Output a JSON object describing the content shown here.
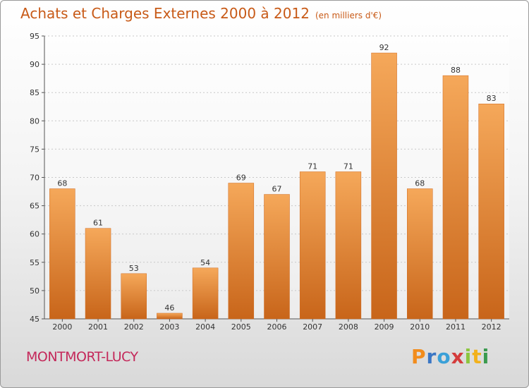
{
  "header": {
    "title": "Achats et Charges Externes 2000 à 2012",
    "unit": "(en milliers d'€)"
  },
  "footer": {
    "commune": "MONTMORT-LUCY",
    "logo_letters": [
      "P",
      "r",
      "o",
      "x",
      "i",
      "t",
      "i"
    ],
    "logo_colors": [
      "#f28c1c",
      "#3a76c4",
      "#3aa0d8",
      "#d43c3c",
      "#8cc63e",
      "#f2b11c",
      "#3a9a4e"
    ]
  },
  "colors": {
    "bar_light": "#f5a85a",
    "bar_dark": "#c8651a",
    "title": "#c85a17",
    "commune": "#c4285a"
  },
  "chart_data": {
    "type": "bar",
    "categories": [
      "2000",
      "2001",
      "2002",
      "2003",
      "2004",
      "2005",
      "2006",
      "2007",
      "2008",
      "2009",
      "2010",
      "2011",
      "2012"
    ],
    "values": [
      68,
      61,
      53,
      46,
      54,
      69,
      67,
      71,
      71,
      92,
      68,
      88,
      83
    ],
    "ylim": [
      45,
      95
    ],
    "yticks": [
      45,
      50,
      55,
      60,
      65,
      70,
      75,
      80,
      85,
      90,
      95
    ],
    "grid": true,
    "legend": "none"
  }
}
